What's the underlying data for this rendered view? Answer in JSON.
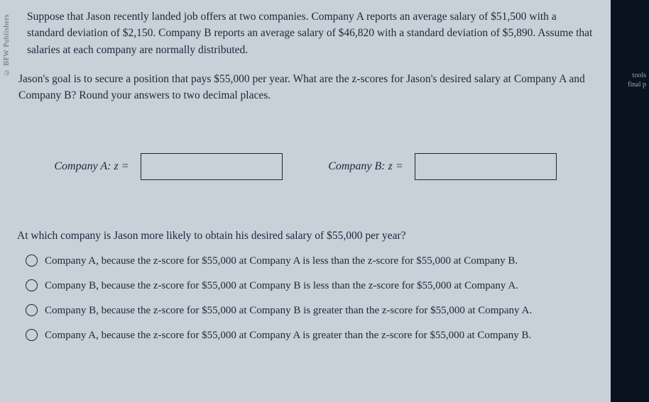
{
  "publisher_label": "© BFW Publishers",
  "problem": "Suppose that Jason recently landed job offers at two companies. Company A reports an average salary of $51,500 with a standard deviation of $2,150. Company B reports an average salary of $46,820 with a standard deviation of $5,890. Assume that salaries at each company are normally distributed.",
  "question": "Jason's goal is to secure a position that pays $55,000 per year. What are the z-scores for Jason's desired salary at Company A and Company B? Round your answers to two decimal places.",
  "inputs": {
    "company_a_label": "Company A: z =",
    "company_a_value": "",
    "company_b_label": "Company B: z =",
    "company_b_value": ""
  },
  "mc_question": "At which company is Jason more likely to obtain his desired salary of $55,000 per year?",
  "mc_options": [
    "Company A, because the z-score for $55,000 at Company A is less than the z-score for $55,000 at Company B.",
    "Company B, because the z-score for $55,000 at Company B is less than the z-score for $55,000 at Company A.",
    "Company B, because the z-score for $55,000 at Company B is greater than the z-score for $55,000 at Company A.",
    "Company A, because the z-score for $55,000 at Company A is greater than the z-score for $55,000 at Company B."
  ],
  "right_hint_1": "tools",
  "right_hint_2": "final p",
  "colors": {
    "page_bg": "#c8d0d8",
    "text": "#1a2838",
    "border": "#1a2838",
    "body_bg": "#000000",
    "right_bg": "#0a1220"
  }
}
